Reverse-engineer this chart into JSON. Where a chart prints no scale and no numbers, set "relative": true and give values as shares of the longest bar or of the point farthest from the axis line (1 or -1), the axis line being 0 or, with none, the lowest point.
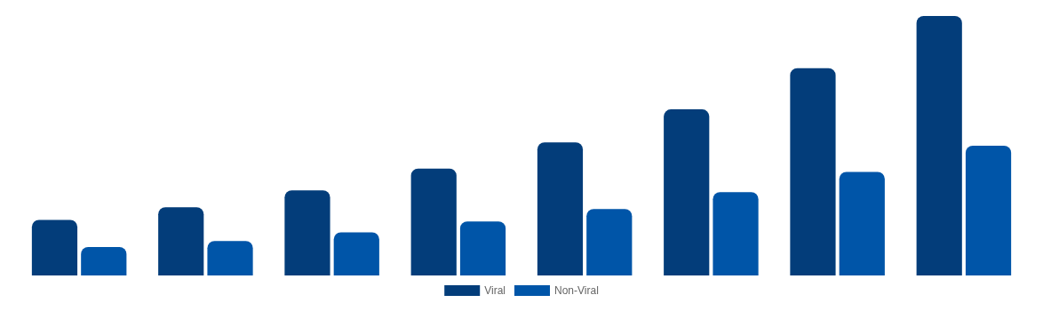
{
  "chart_data": {
    "type": "bar",
    "relative": true,
    "legend": "bottom",
    "categories": [
      null,
      null,
      null,
      null,
      null,
      null,
      null,
      null
    ],
    "series": [
      {
        "name": "Viral",
        "color": "#033d7a",
        "values": [
          0.214,
          0.263,
          0.328,
          0.412,
          0.513,
          0.64,
          0.799,
          1
        ]
      },
      {
        "name": "Non-Viral",
        "color": "#0055a8",
        "values": [
          0.11,
          0.133,
          0.166,
          0.208,
          0.256,
          0.321,
          0.399,
          0.5
        ]
      }
    ]
  }
}
